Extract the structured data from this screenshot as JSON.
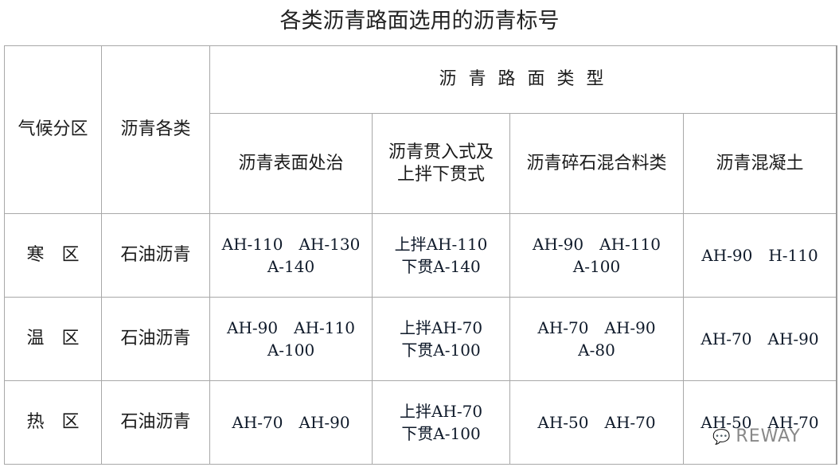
{
  "title": "各类沥青路面选用的沥青标号",
  "headers": {
    "climate": "气候分区",
    "asphalt": "沥青各类",
    "group": "沥 青 路 面 类 型",
    "types": [
      "沥青表面处治",
      "沥青贯入式及\n上拌下贯式",
      "沥青碎石混合料类",
      "沥青混凝土"
    ]
  },
  "rows": [
    {
      "zone": "寒　区",
      "asphalt": "石油沥青",
      "cells": [
        [
          "AH-110　AH-130",
          "A-140"
        ],
        [
          "上拌AH-110",
          "下贯A-140"
        ],
        [
          "AH-90　AH-110",
          "A-100"
        ],
        [
          "AH-90　H-110"
        ]
      ]
    },
    {
      "zone": "温　区",
      "asphalt": "石油沥青",
      "cells": [
        [
          "AH-90　AH-110",
          "A-100"
        ],
        [
          "上拌AH-70",
          "下贯A-100"
        ],
        [
          "AH-70　AH-90",
          "A-80"
        ],
        [
          "AH-70　AH-90"
        ]
      ]
    },
    {
      "zone": "热　区",
      "asphalt": "石油沥青",
      "cells": [
        [
          "AH-70　AH-90"
        ],
        [
          "上拌AH-70",
          "下贯A-100"
        ],
        [
          "AH-50　AH-70"
        ],
        [
          "AH-50　AH-70"
        ]
      ]
    }
  ],
  "watermark": "REWAY",
  "watermark_icon": "wechat-icon"
}
